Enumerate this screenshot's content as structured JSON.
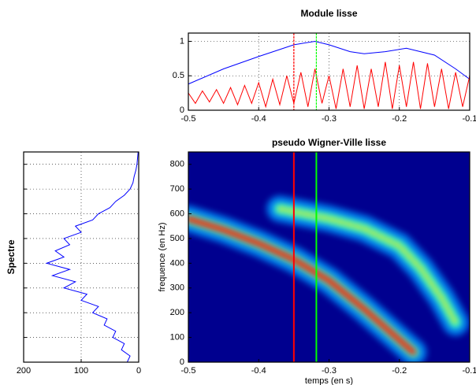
{
  "chart_data": [
    {
      "type": "line",
      "title": "Module lisse",
      "xlim": [
        -0.5,
        -0.1
      ],
      "xticks": [
        -0.5,
        -0.4,
        -0.3,
        -0.2,
        -0.1
      ],
      "ylim": [
        0,
        1.12
      ],
      "yticks": [
        0,
        0.5,
        1
      ],
      "grid": true,
      "series": [
        {
          "color": "#0000ff",
          "x": [
            -0.5,
            -0.45,
            -0.4,
            -0.35,
            -0.32,
            -0.3,
            -0.27,
            -0.25,
            -0.22,
            -0.19,
            -0.15,
            -0.12,
            -0.1
          ],
          "values": [
            0.38,
            0.6,
            0.78,
            0.95,
            1.0,
            0.95,
            0.85,
            0.82,
            0.85,
            0.9,
            0.8,
            0.6,
            0.45
          ]
        },
        {
          "color": "#ff0000",
          "x": [
            -0.5,
            -0.49,
            -0.48,
            -0.47,
            -0.46,
            -0.45,
            -0.44,
            -0.43,
            -0.42,
            -0.41,
            -0.4,
            -0.39,
            -0.38,
            -0.37,
            -0.36,
            -0.35,
            -0.34,
            -0.33,
            -0.32,
            -0.31,
            -0.3,
            -0.29,
            -0.28,
            -0.27,
            -0.26,
            -0.25,
            -0.24,
            -0.23,
            -0.22,
            -0.21,
            -0.2,
            -0.19,
            -0.18,
            -0.17,
            -0.16,
            -0.15,
            -0.14,
            -0.13,
            -0.12,
            -0.11,
            -0.1
          ],
          "values": [
            0.25,
            0.1,
            0.28,
            0.12,
            0.3,
            0.1,
            0.33,
            0.08,
            0.36,
            0.1,
            0.4,
            0.05,
            0.45,
            0.08,
            0.5,
            0.1,
            0.55,
            0.05,
            0.6,
            0.1,
            0.5,
            0.02,
            0.6,
            0.05,
            0.65,
            0.02,
            0.6,
            0.05,
            0.7,
            0.02,
            0.65,
            0.05,
            0.7,
            0.02,
            0.68,
            0.05,
            0.6,
            0.02,
            0.55,
            0.05,
            0.5
          ]
        }
      ],
      "cursors": [
        {
          "x": -0.35,
          "color": "#ff0000"
        },
        {
          "x": -0.318,
          "color": "#00ff00"
        }
      ]
    },
    {
      "type": "spectrum",
      "ylabel": "Spectre",
      "xlim": [
        200,
        0
      ],
      "xticks": [
        200,
        100,
        0
      ],
      "ylim": [
        0,
        850
      ],
      "yticks": [
        100,
        200,
        300,
        400,
        500,
        600,
        700,
        800
      ],
      "grid": true,
      "series": [
        {
          "color": "#0000ff",
          "frequencies": [
            0,
            25,
            50,
            75,
            100,
            125,
            150,
            175,
            200,
            225,
            250,
            275,
            300,
            325,
            350,
            375,
            400,
            425,
            450,
            475,
            500,
            525,
            550,
            575,
            600,
            625,
            650,
            675,
            700,
            725,
            750,
            775,
            800,
            825,
            850
          ],
          "values": [
            20,
            15,
            30,
            25,
            45,
            40,
            60,
            55,
            80,
            70,
            100,
            90,
            130,
            110,
            150,
            120,
            160,
            130,
            145,
            120,
            130,
            100,
            110,
            80,
            70,
            50,
            40,
            25,
            15,
            10,
            8,
            5,
            3,
            2,
            1
          ]
        }
      ]
    },
    {
      "type": "heatmap",
      "title": "pseudo Wigner-Ville lisse",
      "xlabel": "temps (en s)",
      "ylabel": "frequence (en Hz)",
      "xlim": [
        -0.5,
        -0.1
      ],
      "xticks": [
        -0.5,
        -0.4,
        -0.3,
        -0.2,
        -0.1
      ],
      "ylim": [
        0,
        850
      ],
      "yticks": [
        0,
        100,
        200,
        300,
        400,
        500,
        600,
        700,
        800
      ],
      "background": "#00008f",
      "series": [
        {
          "color": "#ff2000",
          "x": [
            -0.5,
            -0.45,
            -0.4,
            -0.35,
            -0.3,
            -0.25,
            -0.2,
            -0.18
          ],
          "values": [
            580,
            535,
            480,
            415,
            330,
            215,
            90,
            40
          ]
        },
        {
          "color": "#ffe000",
          "x": [
            -0.37,
            -0.3,
            -0.25,
            -0.2,
            -0.17,
            -0.14,
            -0.12
          ],
          "values": [
            620,
            580,
            540,
            470,
            380,
            260,
            160
          ]
        }
      ],
      "cursors": [
        {
          "x": -0.35,
          "color": "#ff0000"
        },
        {
          "x": -0.318,
          "color": "#00ff00"
        }
      ]
    }
  ]
}
